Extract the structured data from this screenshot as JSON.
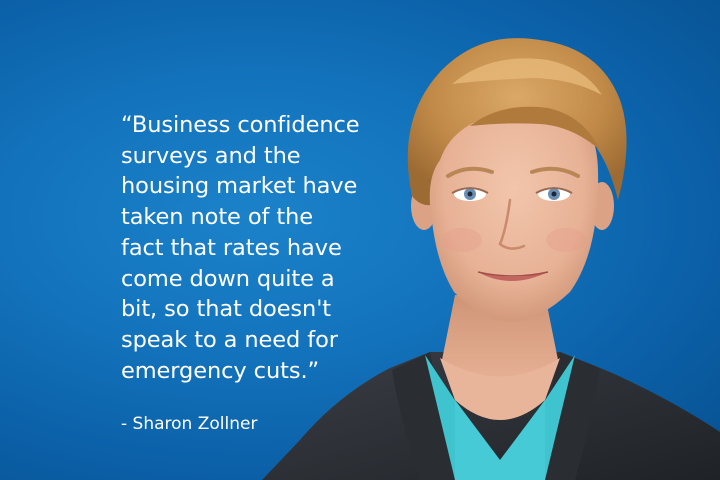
{
  "quote": {
    "lines": [
      "“Business confidence",
      "surveys and the",
      "housing market have",
      "taken note of the",
      "fact that rates have",
      "come down quite a",
      "bit, so that doesn't",
      "speak to a need for",
      "emergency cuts.”"
    ]
  },
  "attribution": "- Sharon Zollner",
  "colors": {
    "background": "#1374bd",
    "text": "#ffffff",
    "jacket": "#2b2e33",
    "top": "#3fc4cf",
    "hair": "#c8914f"
  }
}
